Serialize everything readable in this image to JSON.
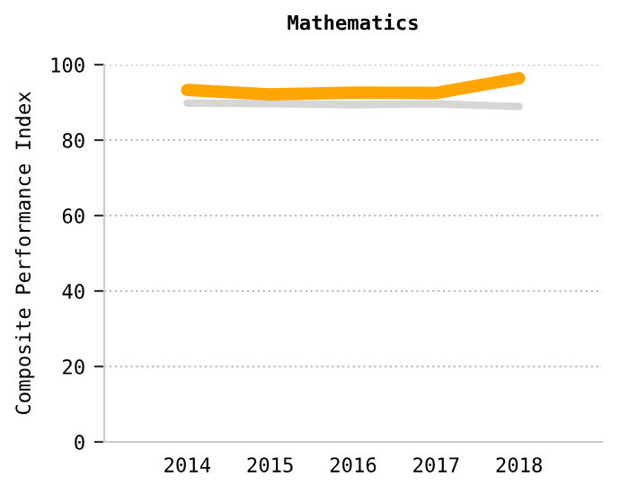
{
  "chart_data": {
    "type": "line",
    "title": "Mathematics",
    "ylabel": "Composite Performance Index",
    "categories": [
      "2014",
      "2015",
      "2016",
      "2017",
      "2018"
    ],
    "series": [
      {
        "color": "#d6d6d6",
        "values": [
          89.8,
          89.7,
          89.4,
          89.6,
          88.9
        ]
      },
      {
        "color": "#ffa500",
        "values": [
          93.3,
          92.1,
          92.6,
          92.5,
          96.4
        ]
      }
    ],
    "ylim": [
      0,
      100
    ],
    "yticks": [
      0,
      20,
      40,
      60,
      80,
      100
    ],
    "grid": "y",
    "marker": "none",
    "line_style": "solid"
  }
}
